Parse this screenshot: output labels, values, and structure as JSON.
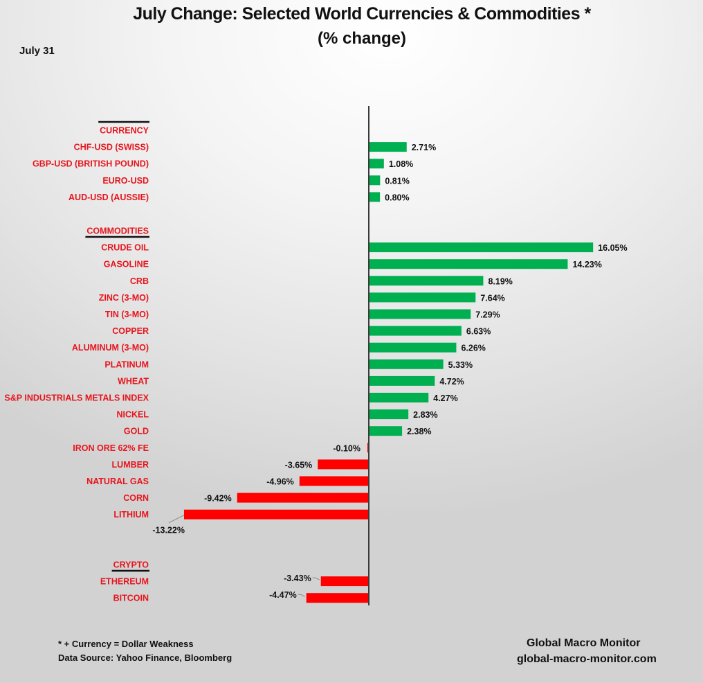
{
  "header": {
    "title": "July Change: Selected World Currencies & Commodities *",
    "subtitle": "(% change)",
    "date": "July 31"
  },
  "footer": {
    "note": "* + Currency = Dollar Weakness",
    "source": "Data Source:  Yahoo Finance, Bloomberg",
    "brand": "Global Macro Monitor",
    "website": "global-macro-monitor.com"
  },
  "colors": {
    "positive": "#00b050",
    "negative": "#ff0000",
    "label": "#e8141c",
    "axis": "#3a3a3a"
  },
  "chart_data": {
    "type": "bar",
    "orientation": "horizontal",
    "title": "July Change: Selected World Currencies & Commodities *",
    "subtitle": "(% change)",
    "unit": "%",
    "grid": false,
    "groups": [
      {
        "name": "CURRENCY",
        "categories": [
          "CHF-USD (SWISS)",
          "GBP-USD (BRITISH POUND)",
          "EURO-USD",
          "AUD-USD (AUSSIE)"
        ],
        "values": [
          2.71,
          1.08,
          0.81,
          0.8
        ],
        "labels": [
          "2.71%",
          "1.08%",
          "0.81%",
          "0.80%"
        ]
      },
      {
        "name": "COMMODITIES",
        "categories": [
          "CRUDE OIL",
          "GASOLINE",
          "CRB",
          "ZINC (3-MO)",
          "TIN (3-MO)",
          "COPPER",
          "ALUMINUM (3-MO)",
          "PLATINUM",
          "WHEAT",
          "S&P INDUSTRIALS METALS INDEX",
          "NICKEL",
          "GOLD",
          "IRON ORE 62% FE",
          "LUMBER",
          "NATURAL GAS",
          "CORN",
          "LITHIUM"
        ],
        "values": [
          16.05,
          14.23,
          8.19,
          7.64,
          7.29,
          6.63,
          6.26,
          5.33,
          4.72,
          4.27,
          2.83,
          2.38,
          -0.1,
          -3.65,
          -4.96,
          -9.42,
          -13.22
        ],
        "labels": [
          "16.05%",
          "14.23%",
          "8.19%",
          "7.64%",
          "7.29%",
          "6.63%",
          "6.26%",
          "5.33%",
          "4.72%",
          "4.27%",
          "2.83%",
          "2.38%",
          "-0.10%",
          "-3.65%",
          "-4.96%",
          "-9.42%",
          "-13.22%"
        ]
      },
      {
        "name": "CRYPTO",
        "categories": [
          "ETHEREUM",
          "BITCOIN"
        ],
        "values": [
          -3.43,
          -4.47
        ],
        "labels": [
          "-3.43%",
          "-4.47%"
        ]
      }
    ]
  }
}
